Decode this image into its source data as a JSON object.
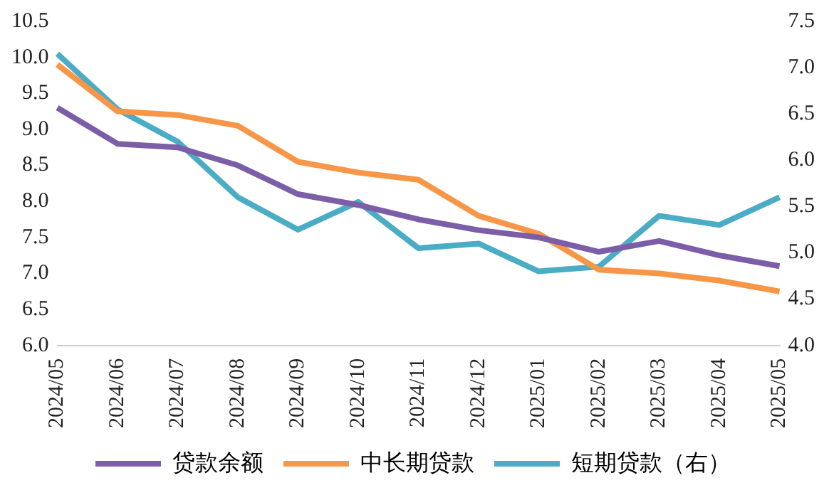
{
  "chart_data": {
    "type": "line",
    "categories": [
      "2024/05",
      "2024/06",
      "2024/07",
      "2024/08",
      "2024/09",
      "2024/10",
      "2024/11",
      "2024/12",
      "2025/01",
      "2025/02",
      "2025/03",
      "2025/04",
      "2025/05"
    ],
    "series": [
      {
        "name": "贷款余额",
        "color": "#7b5ea7",
        "values": [
          9.3,
          8.8,
          8.75,
          8.5,
          8.1,
          7.95,
          7.75,
          7.6,
          7.5,
          7.3,
          7.45,
          7.25,
          7.1
        ]
      },
      {
        "name": "中长期贷款",
        "color": "#f79646",
        "values": [
          9.9,
          9.25,
          9.2,
          9.05,
          8.55,
          8.4,
          8.3,
          7.8,
          7.55,
          7.05,
          7.0,
          6.9,
          6.75
        ]
      },
      {
        "name": "短期贷款（右）",
        "color": "#4bacc6",
        "axis": "y2",
        "values": [
          7.15,
          6.55,
          6.2,
          5.6,
          5.25,
          5.55,
          5.05,
          5.1,
          4.8,
          4.85,
          5.4,
          5.3,
          5.6
        ]
      }
    ],
    "ylim": [
      6.0,
      10.5
    ],
    "yticks": [
      {
        "value": 6,
        "label": "6.0"
      },
      {
        "value": 6.5,
        "label": "6.5"
      },
      {
        "value": 7,
        "label": "7.0"
      },
      {
        "value": 7.5,
        "label": "7.5"
      },
      {
        "value": 8,
        "label": "8.0"
      },
      {
        "value": 8.5,
        "label": "8.5"
      },
      {
        "value": 9,
        "label": "9.0"
      },
      {
        "value": 9.5,
        "label": "9.5"
      },
      {
        "value": 10,
        "label": "10.0"
      },
      {
        "value": 10.5,
        "label": "10.5"
      }
    ],
    "y2lim": [
      4.0,
      7.5
    ],
    "y2ticks": [
      {
        "value": 4,
        "label": "4.0"
      },
      {
        "value": 4.5,
        "label": "4.5"
      },
      {
        "value": 5,
        "label": "5.0"
      },
      {
        "value": 5.5,
        "label": "5.5"
      },
      {
        "value": 6,
        "label": "6.0"
      },
      {
        "value": 6.5,
        "label": "6.5"
      },
      {
        "value": 7,
        "label": "7.0"
      },
      {
        "value": 7.5,
        "label": "7.5"
      }
    ],
    "grid": false,
    "legend": "bottom",
    "marker": "none",
    "line_style": "solid"
  }
}
